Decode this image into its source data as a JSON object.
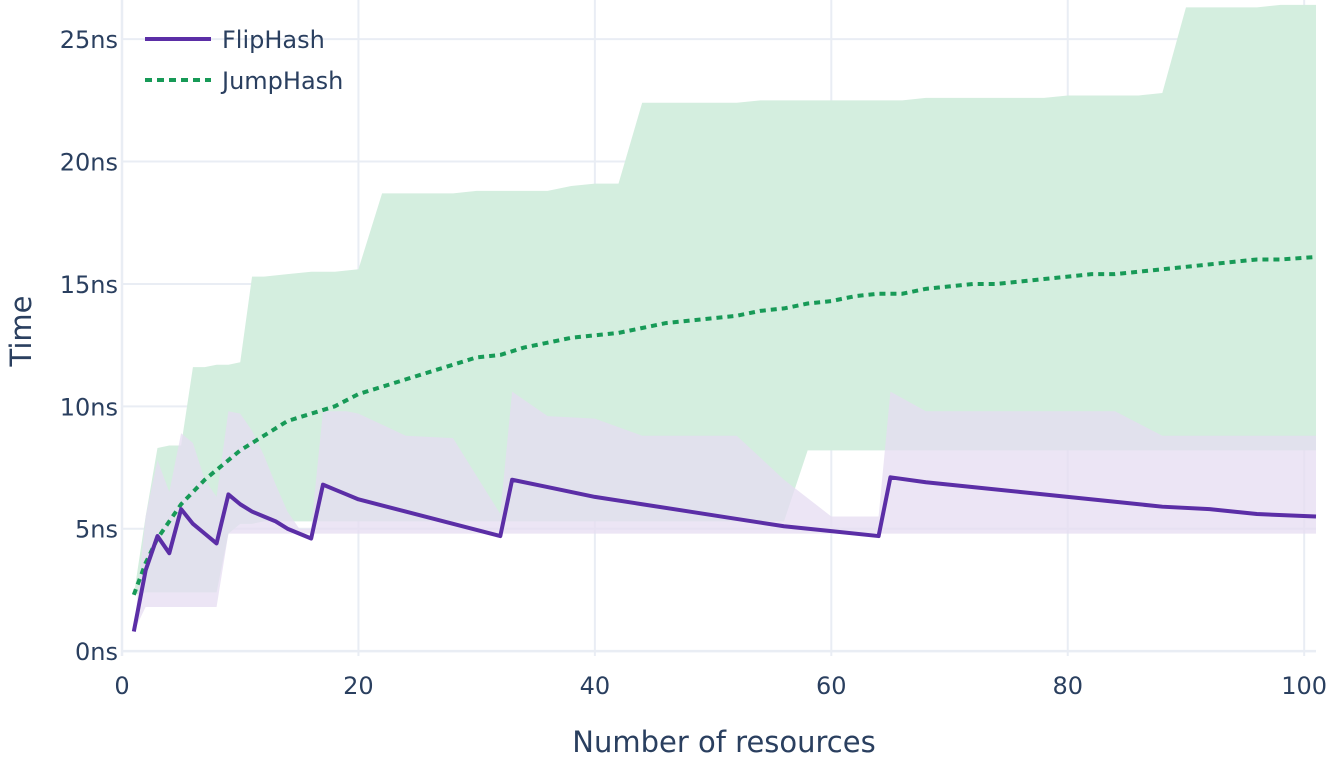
{
  "chart_data": {
    "type": "line",
    "xlabel": "Number of resources",
    "ylabel": "Time",
    "xlim": [
      0,
      101
    ],
    "ylim": [
      -0.2,
      26.6
    ],
    "x_ticks": [
      0,
      20,
      40,
      60,
      80,
      100
    ],
    "x_tick_labels": [
      "0",
      "20",
      "40",
      "60",
      "80",
      "100"
    ],
    "y_ticks": [
      0,
      5,
      10,
      15,
      20,
      25
    ],
    "y_tick_labels": [
      "0ns",
      "5ns",
      "10ns",
      "15ns",
      "20ns",
      "25ns"
    ],
    "grid": true,
    "legend_position": "top-left",
    "series": [
      {
        "name": "FlipHash",
        "color": "#5b2ea6",
        "dash": "solid",
        "band_color": "#e5dcf2",
        "x": [
          1,
          2,
          3,
          4,
          5,
          6,
          7,
          8,
          9,
          10,
          11,
          12,
          13,
          14,
          15,
          16,
          17,
          18,
          19,
          20,
          24,
          28,
          32,
          33,
          36,
          40,
          44,
          48,
          52,
          56,
          60,
          64,
          65,
          68,
          72,
          76,
          80,
          84,
          88,
          92,
          96,
          101
        ],
        "values": [
          0.8,
          3.3,
          4.7,
          4.0,
          5.8,
          5.2,
          4.8,
          4.4,
          6.4,
          6.0,
          5.7,
          5.5,
          5.3,
          5.0,
          4.8,
          4.6,
          6.8,
          6.6,
          6.4,
          6.2,
          5.7,
          5.2,
          4.7,
          7.0,
          6.7,
          6.3,
          6.0,
          5.7,
          5.4,
          5.1,
          4.9,
          4.7,
          7.1,
          6.9,
          6.7,
          6.5,
          6.3,
          6.1,
          5.9,
          5.8,
          5.6,
          5.5
        ],
        "lower": [
          0.8,
          1.8,
          1.8,
          1.8,
          1.8,
          1.8,
          1.8,
          1.8,
          4.8,
          4.8,
          4.8,
          4.8,
          4.8,
          4.8,
          4.8,
          4.8,
          4.8,
          4.8,
          4.8,
          4.8,
          4.8,
          4.8,
          4.8,
          4.8,
          4.8,
          4.8,
          4.8,
          4.8,
          4.8,
          4.8,
          4.8,
          4.8,
          4.8,
          4.8,
          4.8,
          4.8,
          4.8,
          4.8,
          4.8,
          4.8,
          4.8,
          4.8
        ],
        "upper": [
          0.8,
          5.5,
          7.8,
          6.5,
          8.9,
          8.5,
          7.0,
          6.3,
          9.8,
          9.7,
          9.0,
          8.0,
          6.8,
          5.7,
          5.0,
          5.0,
          9.8,
          9.8,
          9.8,
          9.7,
          8.8,
          8.7,
          5.6,
          10.6,
          9.6,
          9.5,
          8.8,
          8.8,
          8.8,
          7.0,
          5.5,
          5.5,
          10.6,
          9.8,
          9.8,
          9.8,
          9.8,
          9.8,
          8.8,
          8.8,
          8.8,
          8.8
        ]
      },
      {
        "name": "JumpHash",
        "color": "#179a57",
        "dash": "dot",
        "band_color": "#d4eedf",
        "x": [
          1,
          2,
          3,
          4,
          5,
          6,
          7,
          8,
          9,
          10,
          11,
          12,
          14,
          16,
          18,
          20,
          22,
          24,
          26,
          28,
          30,
          32,
          34,
          36,
          38,
          40,
          42,
          44,
          46,
          48,
          50,
          52,
          54,
          56,
          58,
          60,
          62,
          64,
          66,
          68,
          70,
          72,
          74,
          76,
          78,
          80,
          82,
          84,
          86,
          88,
          90,
          92,
          94,
          96,
          98,
          101
        ],
        "values": [
          2.3,
          3.6,
          4.6,
          5.3,
          6.0,
          6.5,
          7.0,
          7.4,
          7.8,
          8.2,
          8.5,
          8.8,
          9.4,
          9.7,
          10.0,
          10.5,
          10.8,
          11.1,
          11.4,
          11.7,
          12.0,
          12.1,
          12.4,
          12.6,
          12.8,
          12.9,
          13.0,
          13.2,
          13.4,
          13.5,
          13.6,
          13.7,
          13.9,
          14.0,
          14.2,
          14.3,
          14.5,
          14.6,
          14.6,
          14.8,
          14.9,
          15.0,
          15.0,
          15.1,
          15.2,
          15.3,
          15.4,
          15.4,
          15.5,
          15.6,
          15.7,
          15.8,
          15.9,
          16.0,
          16.0,
          16.1
        ],
        "lower": [
          2.3,
          2.4,
          2.4,
          2.4,
          2.4,
          2.4,
          2.4,
          2.4,
          4.8,
          5.2,
          5.2,
          5.3,
          5.3,
          5.3,
          5.3,
          5.3,
          5.3,
          5.3,
          5.3,
          5.3,
          5.3,
          5.3,
          5.3,
          5.3,
          5.3,
          5.3,
          5.3,
          5.3,
          5.3,
          5.3,
          5.3,
          5.3,
          5.3,
          5.3,
          8.2,
          8.2,
          8.2,
          8.2,
          8.2,
          8.2,
          8.2,
          8.2,
          8.2,
          8.2,
          8.2,
          8.2,
          8.2,
          8.2,
          8.2,
          8.2,
          8.2,
          8.2,
          8.2,
          8.2,
          8.2,
          8.2
        ],
        "upper": [
          2.3,
          5.5,
          8.3,
          8.4,
          8.4,
          11.6,
          11.6,
          11.7,
          11.7,
          11.8,
          15.3,
          15.3,
          15.4,
          15.5,
          15.5,
          15.6,
          18.7,
          18.7,
          18.7,
          18.7,
          18.8,
          18.8,
          18.8,
          18.8,
          19.0,
          19.1,
          19.1,
          22.4,
          22.4,
          22.4,
          22.4,
          22.4,
          22.5,
          22.5,
          22.5,
          22.5,
          22.5,
          22.5,
          22.5,
          22.6,
          22.6,
          22.6,
          22.6,
          22.6,
          22.6,
          22.7,
          22.7,
          22.7,
          22.7,
          22.8,
          26.3,
          26.3,
          26.3,
          26.3,
          26.4,
          26.4
        ]
      }
    ]
  }
}
